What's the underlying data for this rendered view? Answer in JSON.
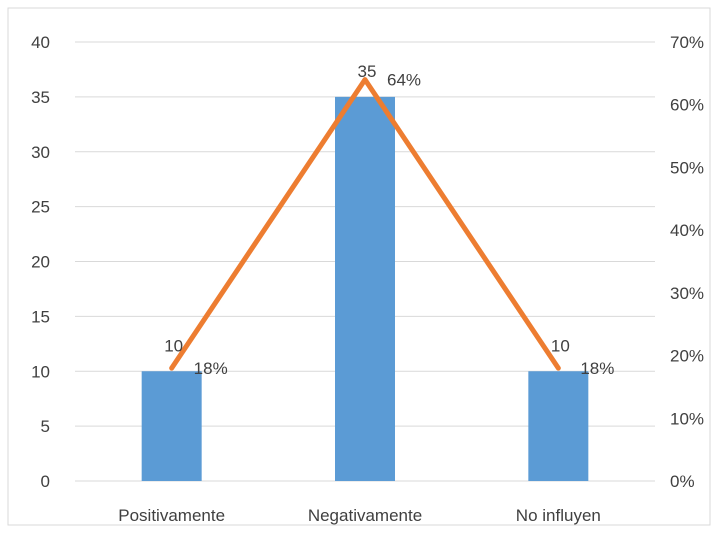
{
  "chart_data": {
    "type": "bar",
    "categories": [
      "Positivamente",
      "Negativamente",
      "No influyen"
    ],
    "series": [
      {
        "values": [
          10,
          35,
          10
        ],
        "axis": "left",
        "color": "#5b9bd5",
        "data_labels": [
          "10",
          "35",
          "10"
        ]
      },
      {
        "values": [
          0.18,
          0.64,
          0.18
        ],
        "axis": "right",
        "render": "line",
        "color": "#ed7d31",
        "data_labels": [
          "18%",
          "64%",
          "18%"
        ]
      }
    ],
    "ylim": [
      0,
      40
    ],
    "y_ticks": [
      "0",
      "5",
      "10",
      "15",
      "20",
      "25",
      "30",
      "35",
      "40"
    ],
    "y2lim": [
      0,
      0.7
    ],
    "y2_ticks": [
      "0%",
      "10%",
      "20%",
      "30%",
      "40%",
      "50%",
      "60%",
      "70%"
    ],
    "grid": true,
    "legend": "none",
    "colors": {
      "gridline": "#d9d9d9",
      "text": "#404040",
      "border": "#d9d9d9"
    }
  }
}
